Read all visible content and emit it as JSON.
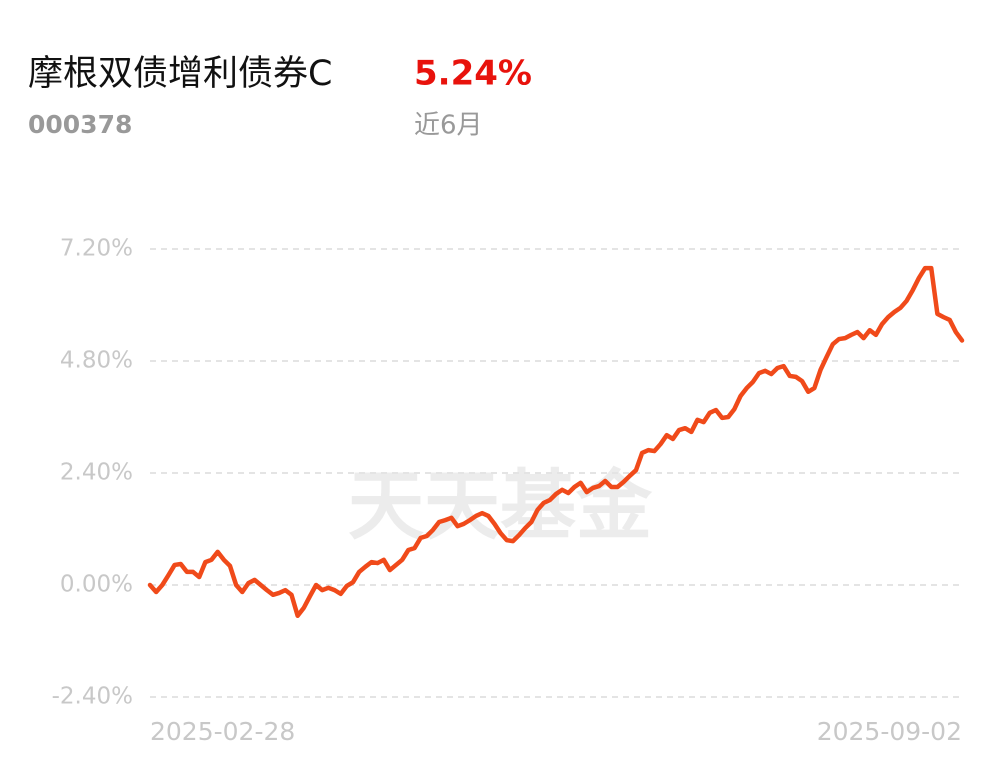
{
  "chart_data": {
    "type": "line",
    "title": "摩根双债增利债券C",
    "fund_code": "000378",
    "return": {
      "value": 5.24,
      "label": "5.24%"
    },
    "period": "近6月",
    "watermark": "天天基金",
    "color": "#f04a1a",
    "grid": true,
    "ylim": [
      -2.4,
      7.2
    ],
    "yticks": [
      {
        "value": 7.2,
        "label": "7.20%"
      },
      {
        "value": 4.8,
        "label": "4.80%"
      },
      {
        "value": 2.4,
        "label": "2.40%"
      },
      {
        "value": 0,
        "label": "0.00%"
      },
      {
        "value": -2.4,
        "label": "-2.40%"
      }
    ],
    "categories": [
      "2025-02-28",
      null,
      null,
      null,
      null,
      null,
      null,
      null,
      null,
      null,
      null,
      null,
      null,
      null,
      null,
      null,
      null,
      null,
      null,
      null,
      null,
      null,
      null,
      null,
      null,
      null,
      null,
      null,
      null,
      null,
      null,
      null,
      null,
      null,
      null,
      null,
      null,
      null,
      null,
      null,
      null,
      null,
      null,
      null,
      null,
      null,
      null,
      null,
      null,
      null,
      null,
      null,
      null,
      null,
      null,
      null,
      null,
      null,
      null,
      null,
      null,
      null,
      null,
      null,
      null,
      null,
      null,
      null,
      null,
      null,
      null,
      null,
      null,
      null,
      null,
      null,
      null,
      null,
      null,
      null,
      null,
      null,
      null,
      null,
      null,
      null,
      null,
      null,
      null,
      null,
      null,
      null,
      null,
      null,
      null,
      null,
      null,
      null,
      null,
      null,
      null,
      null,
      null,
      null,
      null,
      null,
      null,
      null,
      null,
      null,
      null,
      null,
      null,
      null,
      null,
      null,
      null,
      null,
      null,
      null,
      null,
      null,
      null,
      null,
      null,
      null,
      null,
      null,
      null,
      null,
      null,
      null,
      "2025-09-02"
    ],
    "values": [
      0.0,
      -0.15,
      0.0,
      0.21,
      0.43,
      0.45,
      0.28,
      0.28,
      0.17,
      0.49,
      0.54,
      0.71,
      0.54,
      0.41,
      0.0,
      -0.15,
      0.04,
      0.11,
      0.0,
      -0.11,
      -0.21,
      -0.17,
      -0.11,
      -0.21,
      -0.66,
      -0.49,
      -0.24,
      0.0,
      -0.11,
      -0.06,
      -0.11,
      -0.19,
      -0.02,
      0.06,
      0.28,
      0.39,
      0.49,
      0.47,
      0.54,
      0.32,
      0.43,
      0.54,
      0.75,
      0.79,
      1.01,
      1.05,
      1.18,
      1.35,
      1.39,
      1.44,
      1.26,
      1.31,
      1.39,
      1.48,
      1.54,
      1.48,
      1.31,
      1.11,
      0.96,
      0.94,
      1.07,
      1.22,
      1.35,
      1.61,
      1.76,
      1.82,
      1.95,
      2.04,
      1.97,
      2.1,
      2.19,
      1.99,
      2.08,
      2.12,
      2.23,
      2.1,
      2.1,
      2.21,
      2.34,
      2.46,
      2.83,
      2.89,
      2.87,
      3.02,
      3.21,
      3.13,
      3.32,
      3.36,
      3.28,
      3.54,
      3.49,
      3.69,
      3.75,
      3.58,
      3.6,
      3.77,
      4.05,
      4.22,
      4.35,
      4.54,
      4.59,
      4.52,
      4.65,
      4.69,
      4.48,
      4.46,
      4.37,
      4.14,
      4.22,
      4.61,
      4.89,
      5.16,
      5.27,
      5.29,
      5.36,
      5.42,
      5.29,
      5.46,
      5.36,
      5.59,
      5.74,
      5.85,
      5.94,
      6.09,
      6.32,
      6.58,
      6.79,
      6.79,
      5.81,
      5.74,
      5.68,
      5.42,
      5.24
    ]
  }
}
